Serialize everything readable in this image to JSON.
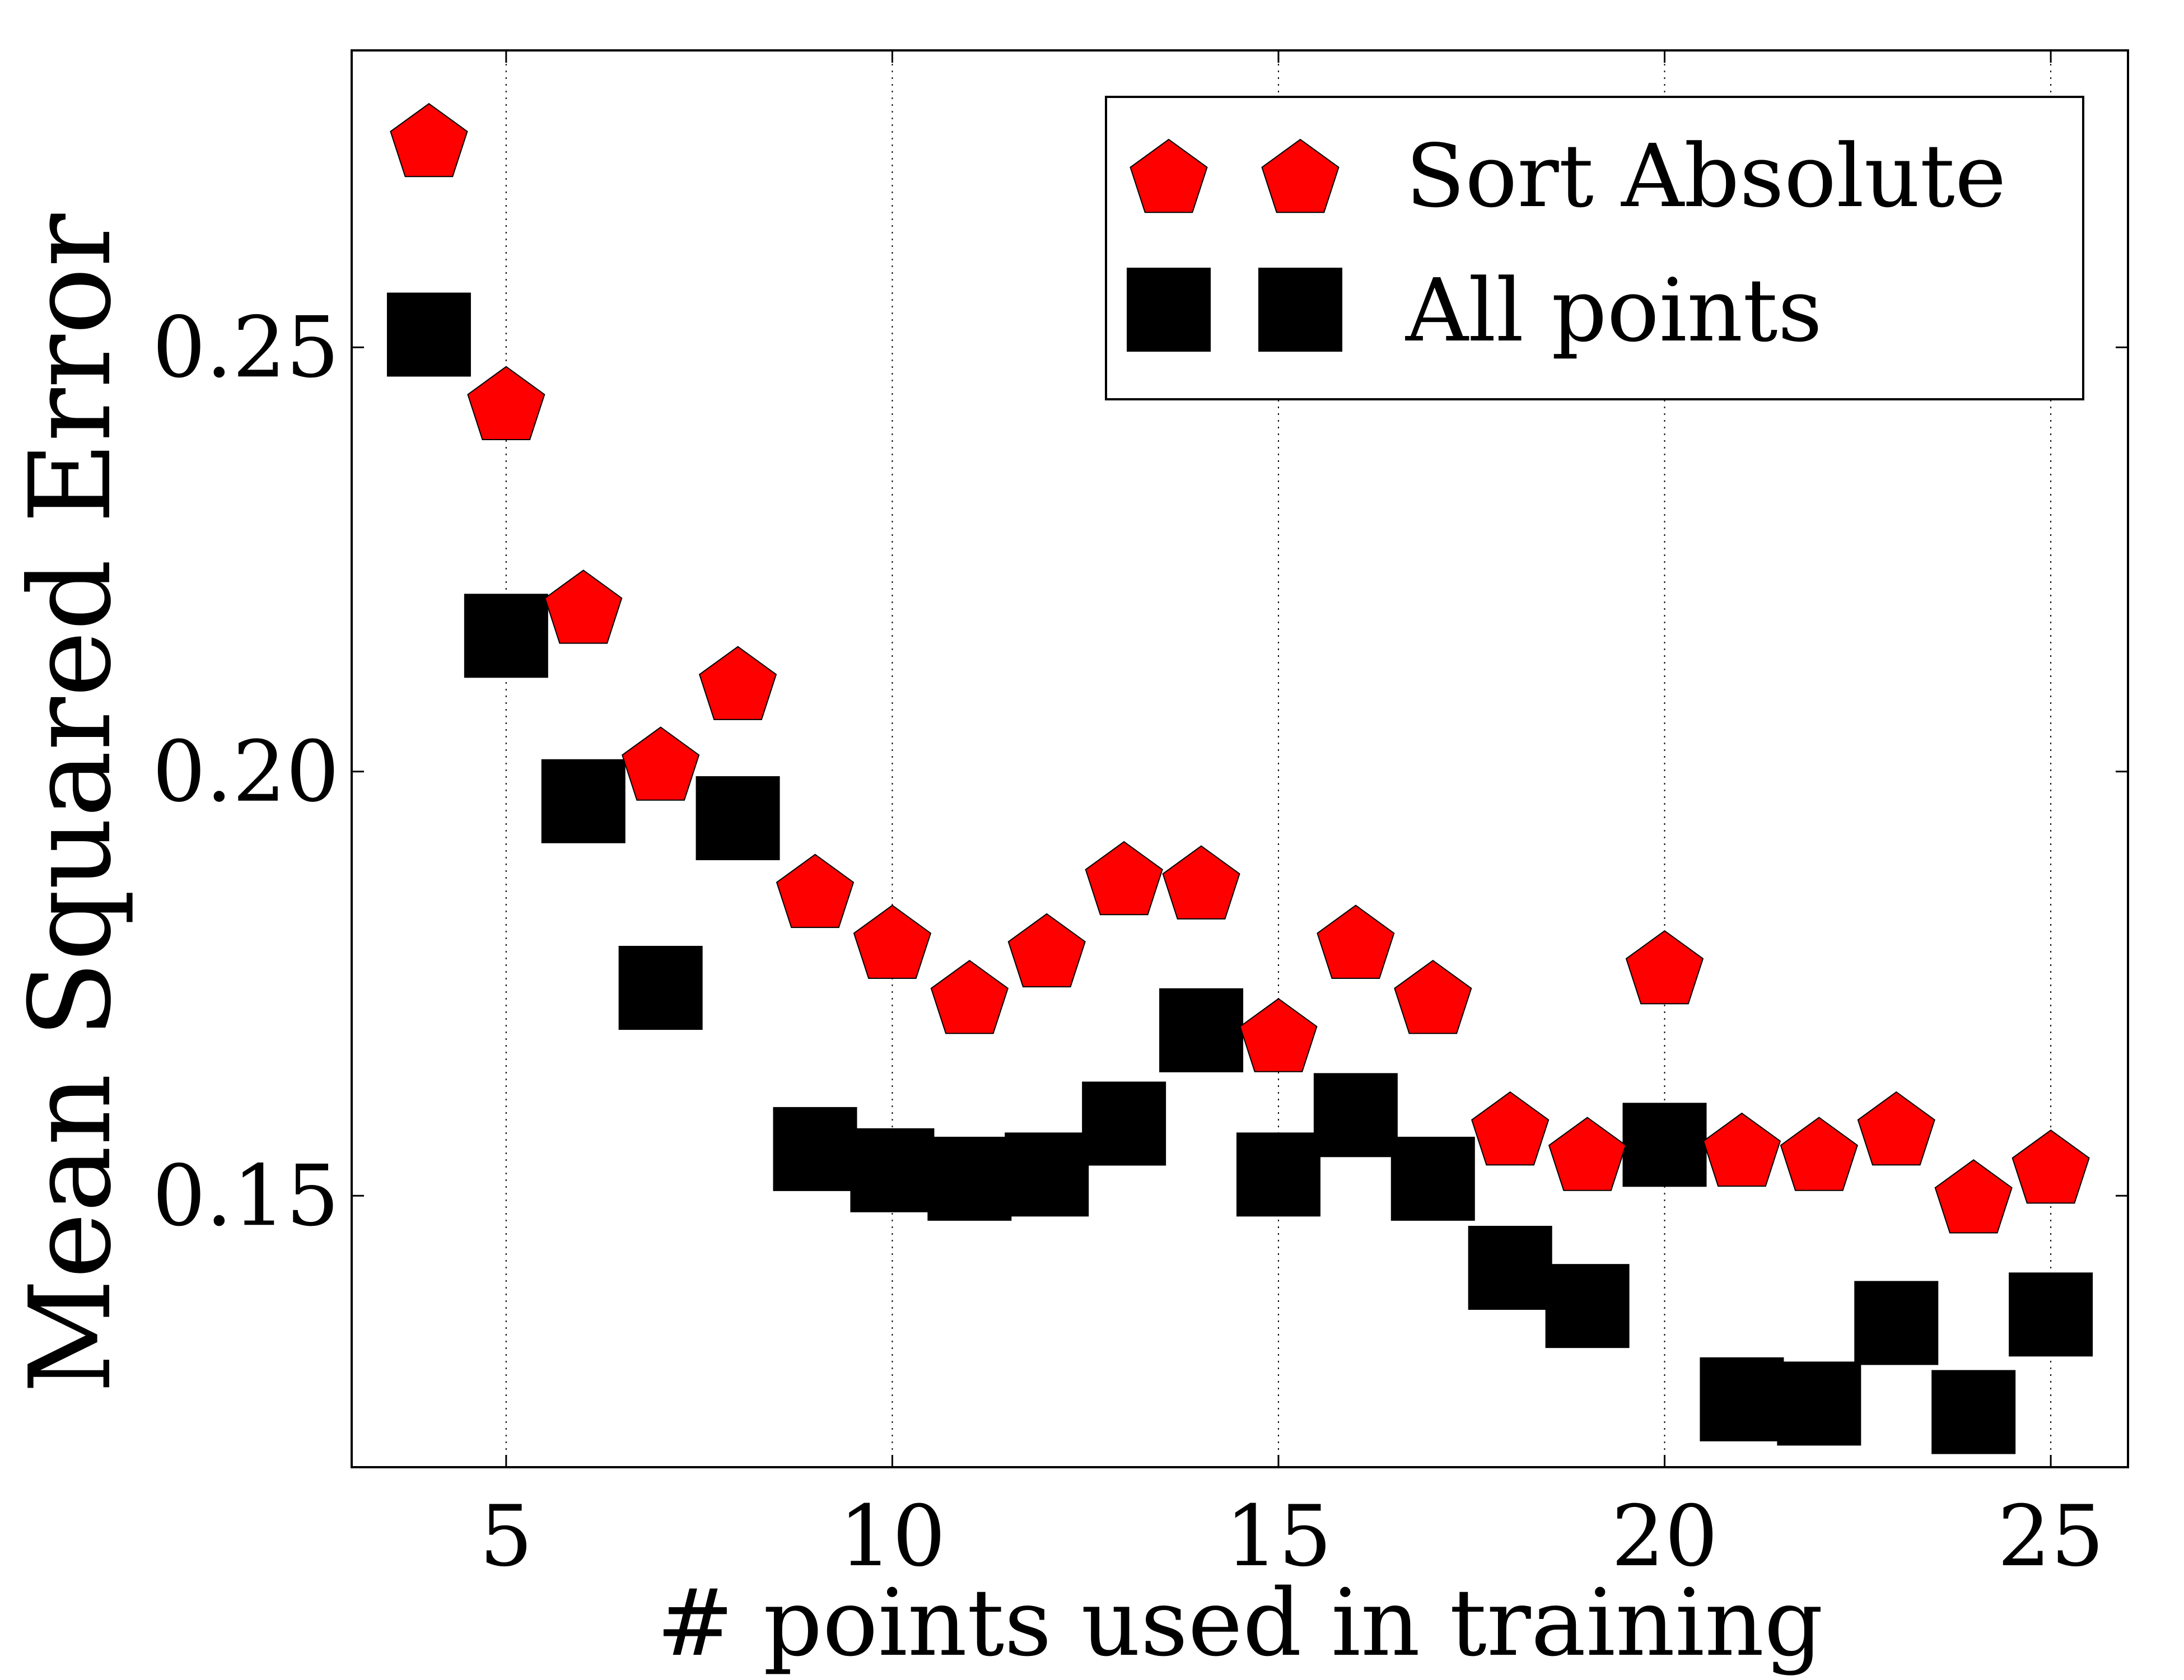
{
  "chart_data": {
    "type": "scatter",
    "xlabel": "# points used in training",
    "ylabel": "Mean Squared Error",
    "xlim": [
      3,
      26
    ],
    "ylim": [
      0.118,
      0.285
    ],
    "xticks": [
      5,
      10,
      15,
      20,
      25
    ],
    "yticks": [
      0.15,
      0.2,
      0.25
    ],
    "xtick_labels": [
      "5",
      "10",
      "15",
      "20",
      "25"
    ],
    "ytick_labels": [
      "0.15",
      "0.20",
      "0.25"
    ],
    "grid": "vertical dotted at x ticks",
    "legend_position": "top-right",
    "x": [
      4,
      5,
      6,
      7,
      8,
      9,
      10,
      11,
      12,
      13,
      14,
      15,
      16,
      17,
      18,
      19,
      20,
      21,
      22,
      23,
      24,
      25
    ],
    "series": [
      {
        "name": "Sort Absolute",
        "marker": "pentagon",
        "color": "#ff0000",
        "values": [
          0.2745,
          0.2435,
          0.2195,
          0.201,
          0.2105,
          0.186,
          0.18,
          0.1735,
          0.179,
          0.1875,
          0.187,
          0.169,
          0.18,
          0.1735,
          0.158,
          0.155,
          0.177,
          0.1555,
          0.155,
          0.158,
          0.15,
          0.1535
        ]
      },
      {
        "name": "All points",
        "marker": "square",
        "color": "#000000",
        "values": [
          0.2515,
          0.216,
          0.1965,
          0.1745,
          0.1945,
          0.1555,
          0.153,
          0.152,
          0.1525,
          0.1585,
          0.1695,
          0.1525,
          0.1595,
          0.152,
          0.1415,
          0.137,
          0.156,
          0.126,
          0.1255,
          0.135,
          0.1245,
          0.136
        ]
      }
    ]
  }
}
